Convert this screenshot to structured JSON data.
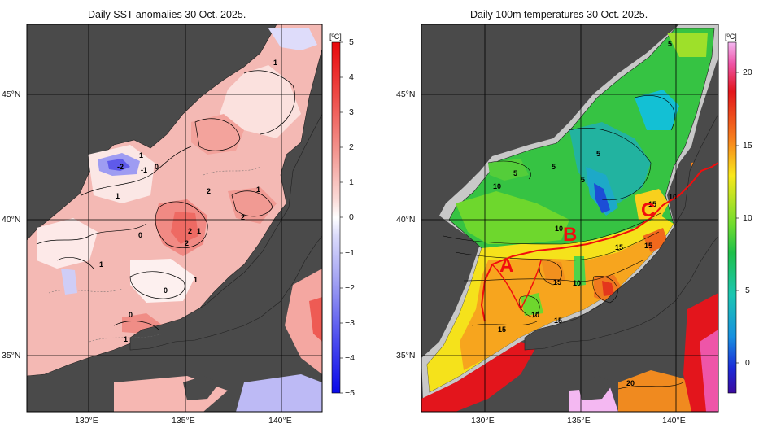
{
  "panels": [
    {
      "title": "Daily SST anomalies 30 Oct. 2025.",
      "unit": "[ºC]",
      "colorbar_ticks": [
        "5",
        "4",
        "3",
        "2",
        "1",
        "0",
        "−1",
        "−2",
        "−3",
        "−4",
        "−5"
      ],
      "contour_labels": [
        "1",
        "1",
        "-2",
        "-1",
        "0",
        "1",
        "1",
        "2",
        "1",
        "2",
        "2",
        "2",
        "1",
        "0",
        "1",
        "0",
        "1",
        "0"
      ]
    },
    {
      "title": "Daily 100m temperatures 30 Oct. 2025.",
      "unit": "[ºC]",
      "colorbar_ticks": [
        "20",
        "15",
        "10",
        "5",
        "0"
      ],
      "contour_labels": [
        "5",
        "5",
        "5",
        "5",
        "5",
        "10",
        "10",
        "15",
        "10",
        "15",
        "15",
        "15",
        "10",
        "10",
        "15",
        "15",
        "20"
      ],
      "section_labels": [
        "A",
        "B",
        "C"
      ]
    }
  ],
  "lat_labels": [
    "45°N",
    "40°N",
    "35°N"
  ],
  "lon_labels": [
    "130°E",
    "135°E",
    "140°E"
  ],
  "colors": {
    "land": "#4a4a4a",
    "shelf": "#c8c8c8",
    "section_line": "#f20d0d"
  },
  "chart_data": [
    {
      "type": "heatmap",
      "title": "Daily SST anomalies 30 Oct. 2025.",
      "unit": "ºC",
      "color_range": [
        -5,
        5
      ],
      "colormap": "blue-white-red",
      "lon_range": [
        127,
        142.5
      ],
      "lat_range": [
        33,
        47.5
      ],
      "lat_ticks": [
        45,
        40,
        35
      ],
      "lon_ticks": [
        130,
        135,
        140
      ],
      "contour_interval": 1
    },
    {
      "type": "heatmap",
      "title": "Daily 100m temperatures 30 Oct. 2025.",
      "unit": "ºC",
      "color_range": [
        -2,
        22
      ],
      "colormap": "rainbow",
      "lon_range": [
        127,
        142.5
      ],
      "lat_range": [
        33,
        47.5
      ],
      "lat_ticks": [
        45,
        40,
        35
      ],
      "lon_ticks": [
        130,
        135,
        140
      ],
      "contour_interval": 1,
      "sections": [
        "A",
        "B",
        "C"
      ]
    }
  ]
}
